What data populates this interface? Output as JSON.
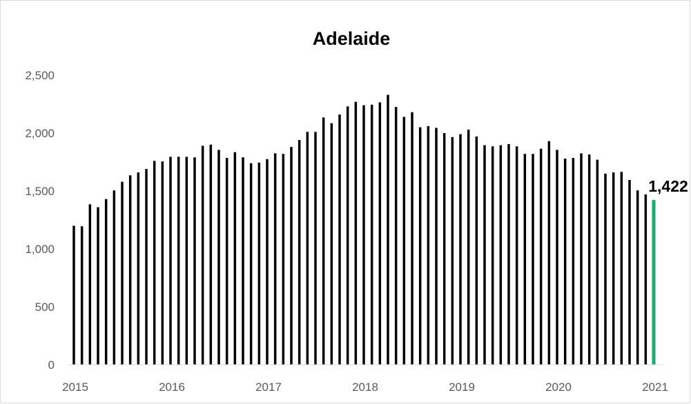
{
  "chart_data": {
    "type": "bar",
    "title": "Adelaide",
    "xlabel": "",
    "ylabel": "",
    "ylim": [
      0,
      2500
    ],
    "yticks": [
      0,
      500,
      1000,
      1500,
      2000,
      2500
    ],
    "ytick_labels": [
      "0",
      "500",
      "1,000",
      "1,500",
      "2,000",
      "2,500"
    ],
    "xtick_labels": [
      "2015",
      "2016",
      "2017",
      "2018",
      "2019",
      "2020",
      "2021"
    ],
    "grid": false,
    "bar_color": "#000000",
    "highlight_color": "#1aaa6b",
    "last_value_label": "1,422",
    "series": [
      {
        "values": [
          1200,
          1195,
          1385,
          1360,
          1430,
          1505,
          1580,
          1635,
          1660,
          1690,
          1760,
          1755,
          1795,
          1795,
          1795,
          1790,
          1890,
          1900,
          1855,
          1785,
          1835,
          1790,
          1740,
          1745,
          1775,
          1825,
          1820,
          1880,
          1940,
          2010,
          2010,
          2135,
          2085,
          2160,
          2230,
          2270,
          2240,
          2245,
          2265,
          2330,
          2225,
          2140,
          2180,
          2050,
          2060,
          2045,
          2000,
          1965,
          1990,
          2030,
          1970,
          1895,
          1885,
          1895,
          1905,
          1885,
          1820,
          1820,
          1865,
          1930,
          1855,
          1780,
          1785,
          1825,
          1815,
          1770,
          1650,
          1660,
          1665,
          1595,
          1505,
          1470,
          1422
        ]
      }
    ]
  }
}
